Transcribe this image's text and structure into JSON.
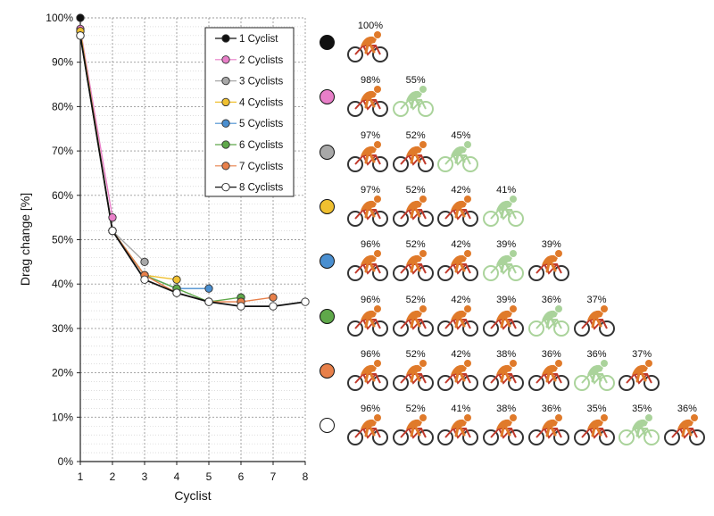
{
  "chart_data": {
    "type": "line",
    "title": "",
    "xlabel": "Cyclist",
    "ylabel": "Drag change [%]",
    "x_ticks": [
      "1",
      "2",
      "3",
      "4",
      "5",
      "6",
      "7",
      "8"
    ],
    "y_ticks": [
      "0%",
      "10%",
      "20%",
      "30%",
      "40%",
      "50%",
      "60%",
      "70%",
      "80%",
      "90%",
      "100%"
    ],
    "xlim": [
      1,
      8
    ],
    "ylim": [
      0,
      100
    ],
    "grid": "dotted",
    "legend_position": "top-right",
    "series": [
      {
        "name": "1 Cyclist",
        "color": "#111111",
        "values": [
          100
        ]
      },
      {
        "name": "2 Cyclists",
        "color": "#e87fc8",
        "values": [
          97.5,
          55
        ]
      },
      {
        "name": "3 Cyclists",
        "color": "#a8a8a8",
        "values": [
          97,
          52,
          45
        ]
      },
      {
        "name": "4 Cyclists",
        "color": "#f0c030",
        "values": [
          97,
          52,
          42,
          41
        ]
      },
      {
        "name": "5 Cyclists",
        "color": "#4a8fd0",
        "values": [
          96,
          52,
          42,
          39,
          39
        ]
      },
      {
        "name": "6 Cyclists",
        "color": "#5fa84a",
        "values": [
          96,
          52,
          42,
          39,
          36,
          37
        ]
      },
      {
        "name": "7 Cyclists",
        "color": "#e8804a",
        "values": [
          96,
          52,
          42,
          38,
          36,
          36,
          37
        ]
      },
      {
        "name": "8 Cyclists",
        "color": "#ffffff",
        "values": [
          96,
          52,
          41,
          38,
          36,
          35,
          35,
          36
        ]
      }
    ]
  },
  "icons": {
    "rider": "cyclist-icon",
    "shaded_rider": "cyclist-shaded-icon"
  },
  "bike_colors": {
    "rider": "#e07a2a",
    "shaded": "#9ccc8a"
  },
  "formations": [
    {
      "group": "1 Cyclist",
      "color": "#111111",
      "labels": [
        "100%"
      ],
      "shaded": [
        false
      ]
    },
    {
      "group": "2 Cyclists",
      "color": "#e87fc8",
      "labels": [
        "98%",
        "55%"
      ],
      "shaded": [
        false,
        true
      ]
    },
    {
      "group": "3 Cyclists",
      "color": "#a8a8a8",
      "labels": [
        "97%",
        "52%",
        "45%"
      ],
      "shaded": [
        false,
        false,
        true
      ]
    },
    {
      "group": "4 Cyclists",
      "color": "#f0c030",
      "labels": [
        "97%",
        "52%",
        "42%",
        "41%"
      ],
      "shaded": [
        false,
        false,
        false,
        true
      ]
    },
    {
      "group": "5 Cyclists",
      "color": "#4a8fd0",
      "labels": [
        "96%",
        "52%",
        "42%",
        "39%",
        "39%"
      ],
      "shaded": [
        false,
        false,
        false,
        true,
        false
      ]
    },
    {
      "group": "6 Cyclists",
      "color": "#5fa84a",
      "labels": [
        "96%",
        "52%",
        "42%",
        "39%",
        "36%",
        "37%"
      ],
      "shaded": [
        false,
        false,
        false,
        false,
        true,
        false
      ]
    },
    {
      "group": "7 Cyclists",
      "color": "#e8804a",
      "labels": [
        "96%",
        "52%",
        "42%",
        "38%",
        "36%",
        "36%",
        "37%"
      ],
      "shaded": [
        false,
        false,
        false,
        false,
        false,
        true,
        false
      ]
    },
    {
      "group": "8 Cyclists",
      "color": "#ffffff",
      "labels": [
        "96%",
        "52%",
        "41%",
        "38%",
        "36%",
        "35%",
        "35%",
        "36%"
      ],
      "shaded": [
        false,
        false,
        false,
        false,
        false,
        false,
        true,
        false
      ]
    }
  ]
}
